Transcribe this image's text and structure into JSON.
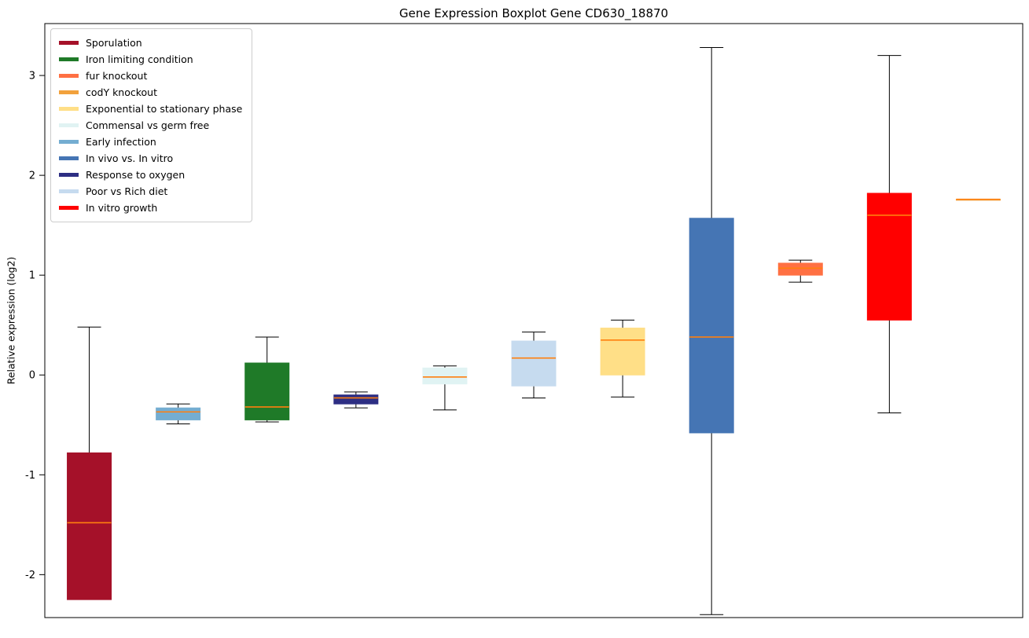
{
  "title": "Gene Expression Boxplot Gene CD630_18870",
  "ylabel": "Relative expression (log2)",
  "chart_data": {
    "type": "boxplot",
    "title": "Gene Expression Boxplot Gene CD630_18870",
    "xlabel": "",
    "ylabel": "Relative expression (log2)",
    "ylim": [
      -2.43,
      3.52
    ],
    "yticks": [
      -2,
      -1,
      0,
      1,
      2,
      3
    ],
    "grid": false,
    "legend_position": "upper-left",
    "median_color": "#ff7f0e",
    "frame_color": "#000000",
    "legend": [
      {
        "label": "Sporulation",
        "color": "#a51129"
      },
      {
        "label": "Iron limiting condition",
        "color": "#1f7a28"
      },
      {
        "label": "fur knockout",
        "color": "#ff7043"
      },
      {
        "label": "codY knockout",
        "color": "#f2a13c"
      },
      {
        "label": "Exponential to stationary phase",
        "color": "#ffdf87"
      },
      {
        "label": "Commensal vs germ free",
        "color": "#e0f3f3"
      },
      {
        "label": "Early infection",
        "color": "#74add1"
      },
      {
        "label": "In vivo vs. In vitro",
        "color": "#4575b4"
      },
      {
        "label": "Response to oxygen",
        "color": "#2d2e83"
      },
      {
        "label": "Poor vs Rich diet",
        "color": "#c6dbef"
      },
      {
        "label": "In vitro growth",
        "color": "#ff0000"
      }
    ],
    "boxes": [
      {
        "label": "Sporulation",
        "color": "#a51129",
        "whisker_low": -2.25,
        "q1": -2.25,
        "median": -1.48,
        "q3": -0.78,
        "whisker_high": 0.48
      },
      {
        "label": "Early infection",
        "color": "#74add1",
        "whisker_low": -0.49,
        "q1": -0.45,
        "median": -0.37,
        "q3": -0.33,
        "whisker_high": -0.29
      },
      {
        "label": "Iron limiting condition",
        "color": "#1f7a28",
        "whisker_low": -0.47,
        "q1": -0.45,
        "median": -0.32,
        "q3": 0.12,
        "whisker_high": 0.38
      },
      {
        "label": "Response to oxygen",
        "color": "#2d2e83",
        "whisker_low": -0.33,
        "q1": -0.29,
        "median": -0.23,
        "q3": -0.2,
        "whisker_high": -0.17
      },
      {
        "label": "Commensal vs germ free",
        "color": "#e0f3f3",
        "whisker_low": -0.35,
        "q1": -0.09,
        "median": -0.02,
        "q3": 0.07,
        "whisker_high": 0.09
      },
      {
        "label": "Poor vs Rich diet",
        "color": "#c6dbef",
        "whisker_low": -0.23,
        "q1": -0.11,
        "median": 0.17,
        "q3": 0.34,
        "whisker_high": 0.43
      },
      {
        "label": "Exponential to stationary phase",
        "color": "#ffdf87",
        "whisker_low": -0.22,
        "q1": 0.0,
        "median": 0.35,
        "q3": 0.47,
        "whisker_high": 0.55
      },
      {
        "label": "In vivo vs. In vitro",
        "color": "#4575b4",
        "whisker_low": -2.4,
        "q1": -0.58,
        "median": 0.38,
        "q3": 1.57,
        "whisker_high": 3.28
      },
      {
        "label": "fur knockout",
        "color": "#ff7043",
        "whisker_low": 0.93,
        "q1": 1.0,
        "median": 1.07,
        "q3": 1.12,
        "whisker_high": 1.15
      },
      {
        "label": "In vitro growth",
        "color": "#ff0000",
        "whisker_low": -0.38,
        "q1": 0.55,
        "median": 1.6,
        "q3": 1.82,
        "whisker_high": 3.2
      },
      {
        "label": "codY knockout",
        "color": "#f2a13c",
        "whisker_low": 1.76,
        "q1": 1.76,
        "median": 1.76,
        "q3": 1.76,
        "whisker_high": 1.76
      }
    ]
  }
}
